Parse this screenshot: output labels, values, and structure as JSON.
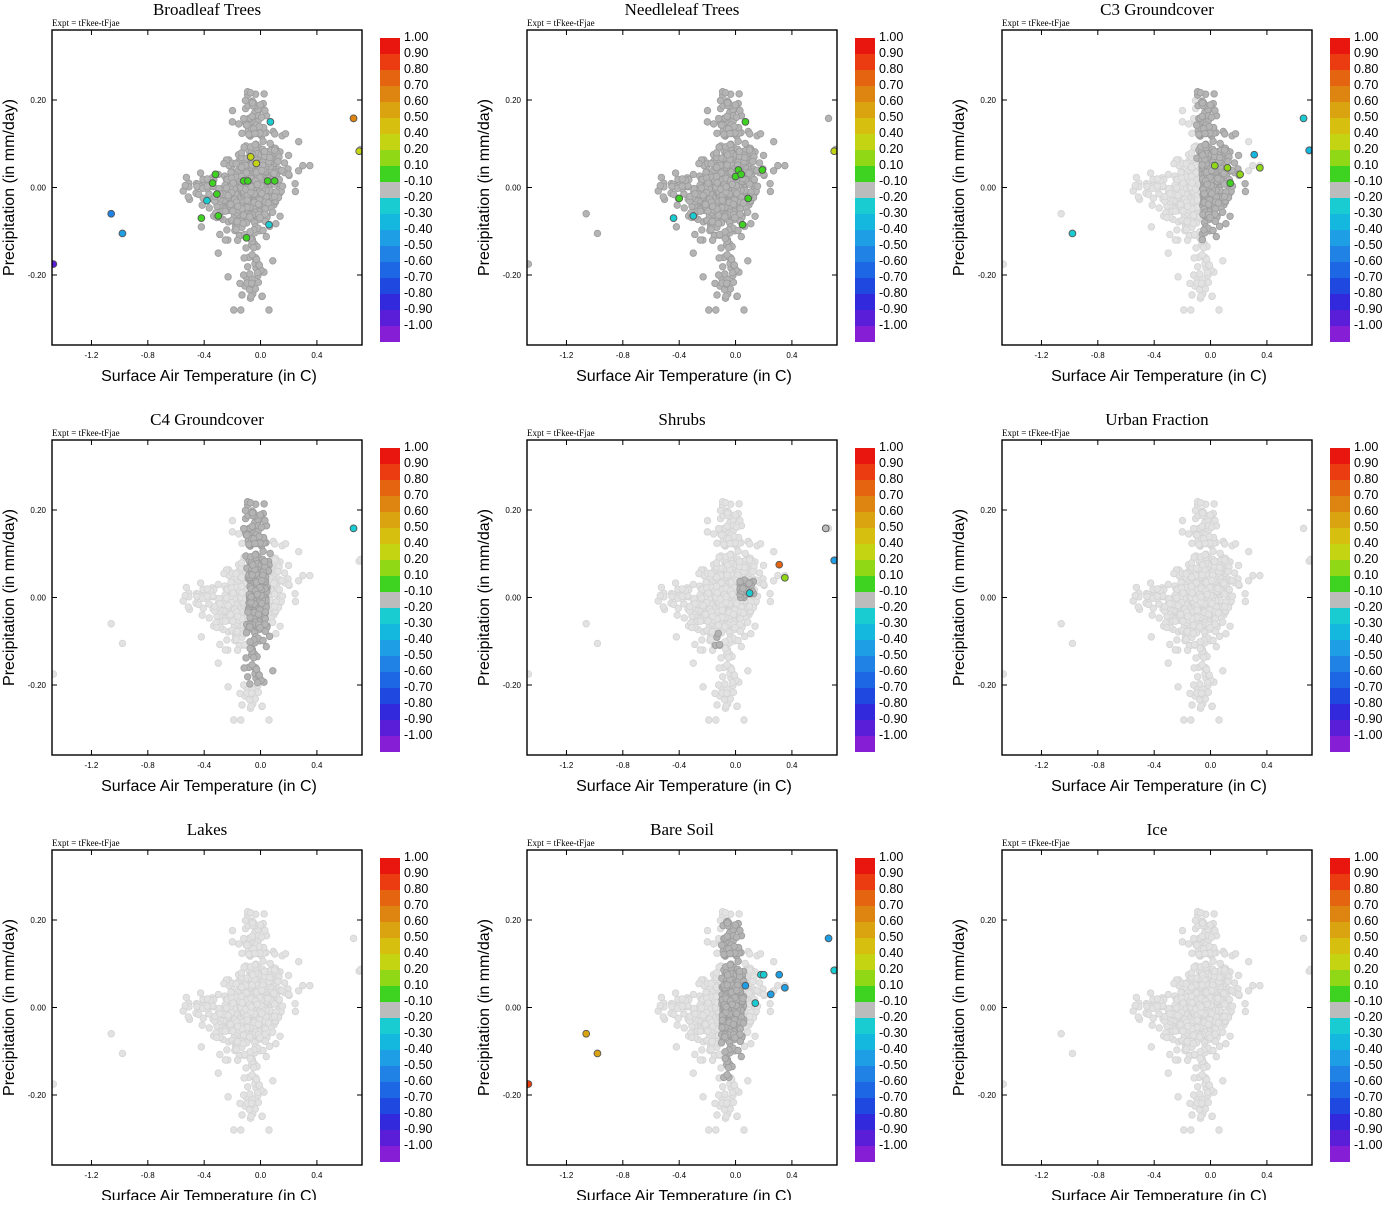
{
  "figure": {
    "expt_label": "Expt = tFkee-tFjae",
    "xlabel": "Surface Air Temperature (in C)",
    "ylabel": "Precipitation (in mm/day)"
  },
  "chart_data": [
    {
      "type": "scatter",
      "title": "Broadleaf Trees",
      "variant": 0
    },
    {
      "type": "scatter",
      "title": "Needleleaf Trees",
      "variant": 1
    },
    {
      "type": "scatter",
      "title": "C3 Groundcover",
      "variant": 2
    },
    {
      "type": "scatter",
      "title": "C4 Groundcover",
      "variant": 3
    },
    {
      "type": "scatter",
      "title": "Shrubs",
      "variant": 4
    },
    {
      "type": "scatter",
      "title": "Urban Fraction",
      "variant": 5
    },
    {
      "type": "scatter",
      "title": "Lakes",
      "variant": 6
    },
    {
      "type": "scatter",
      "title": "Bare Soil",
      "variant": 7
    },
    {
      "type": "scatter",
      "title": "Ice",
      "variant": 8
    }
  ],
  "axes": {
    "xlim": [
      -1.48,
      0.72
    ],
    "ylim": [
      -0.36,
      0.36
    ],
    "xticks": [
      -1.2,
      -0.8,
      -0.4,
      0.0,
      0.4
    ],
    "xtick_labels": [
      "-1.2",
      "-0.8",
      "-0.4",
      "0.0",
      "0.4"
    ],
    "yticks": [
      0.2,
      0.0,
      -0.2
    ],
    "ytick_labels": [
      "0.20",
      "0.00",
      "-0.20"
    ]
  },
  "colorbar": {
    "labels": [
      "1.00",
      "0.90",
      "0.80",
      "0.70",
      "0.60",
      "0.50",
      "0.40",
      "0.20",
      "0.10",
      "-0.10",
      "-0.20",
      "-0.30",
      "-0.40",
      "-0.50",
      "-0.60",
      "-0.70",
      "-0.80",
      "-0.90",
      "-1.00"
    ],
    "colors": [
      "#e8160f",
      "#ea3c10",
      "#e46410",
      "#dd8510",
      "#d9a40f",
      "#d7bf10",
      "#c5d412",
      "#90d816",
      "#3ed221",
      "#bcbcbc",
      "#19ccd2",
      "#14b7de",
      "#1e9ee4",
      "#1f82e4",
      "#1d66e4",
      "#1f48e0",
      "#3228dc",
      "#5a1ed8",
      "#861ed6"
    ]
  },
  "colors": {
    "background_point": "#e2e2e2",
    "neutral_point": "#b4b4b4"
  }
}
